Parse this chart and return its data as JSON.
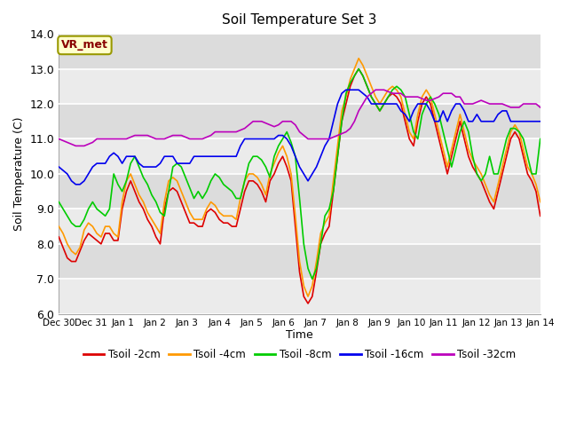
{
  "title": "Soil Temperature Set 3",
  "xlabel": "Time",
  "ylabel": "Soil Temperature (C)",
  "ylim": [
    6.0,
    14.0
  ],
  "yticks": [
    6.0,
    7.0,
    8.0,
    9.0,
    10.0,
    11.0,
    12.0,
    13.0,
    14.0
  ],
  "ytick_labels": [
    "6.0",
    "7.0",
    "8.0",
    "9.0",
    "10.0",
    "11.0",
    "12.0",
    "13.0",
    "14.0"
  ],
  "xlim": [
    0,
    15
  ],
  "xtick_labels": [
    "Dec 30",
    "Dec 31",
    "Jan 1",
    "Jan 2",
    "Jan 3",
    "Jan 4",
    "Jan 5",
    "Jan 6",
    "Jan 7",
    "Jan 8",
    "Jan 9",
    "Jan 10",
    "Jan 11",
    "Jan 12",
    "Jan 13",
    "Jan 14"
  ],
  "bg_color_light": "#ebebeb",
  "bg_color_dark": "#dcdcdc",
  "plot_bg": "#e8e8e8",
  "lines": {
    "Tsoil -2cm": {
      "color": "#dd0000",
      "lw": 1.2
    },
    "Tsoil -4cm": {
      "color": "#ff9900",
      "lw": 1.2
    },
    "Tsoil -8cm": {
      "color": "#00cc00",
      "lw": 1.2
    },
    "Tsoil -16cm": {
      "color": "#0000ee",
      "lw": 1.2
    },
    "Tsoil -32cm": {
      "color": "#bb00bb",
      "lw": 1.2
    }
  },
  "legend_box_color": "#ffffcc",
  "legend_box_edge": "#999900",
  "legend_text": "VR_met",
  "series": {
    "Tsoil -2cm": [
      8.2,
      7.9,
      7.6,
      7.5,
      7.5,
      7.8,
      8.1,
      8.3,
      8.2,
      8.1,
      8.0,
      8.3,
      8.3,
      8.1,
      8.1,
      9.0,
      9.5,
      9.8,
      9.5,
      9.2,
      9.0,
      8.7,
      8.5,
      8.2,
      8.0,
      9.0,
      9.5,
      9.6,
      9.5,
      9.2,
      8.9,
      8.6,
      8.6,
      8.5,
      8.5,
      8.9,
      9.0,
      8.9,
      8.7,
      8.6,
      8.6,
      8.5,
      8.5,
      9.0,
      9.5,
      9.8,
      9.8,
      9.7,
      9.5,
      9.2,
      9.8,
      10.0,
      10.3,
      10.5,
      10.2,
      9.8,
      8.5,
      7.2,
      6.5,
      6.3,
      6.5,
      7.2,
      8.0,
      8.3,
      8.5,
      9.5,
      10.5,
      11.5,
      12.0,
      12.5,
      12.8,
      13.0,
      12.8,
      12.5,
      12.2,
      12.0,
      11.8,
      12.0,
      12.2,
      12.3,
      12.2,
      12.0,
      11.5,
      11.0,
      10.8,
      11.5,
      12.0,
      12.2,
      12.0,
      11.5,
      11.0,
      10.5,
      10.0,
      10.5,
      11.0,
      11.5,
      11.0,
      10.5,
      10.2,
      10.0,
      9.8,
      9.5,
      9.2,
      9.0,
      9.5,
      10.0,
      10.5,
      11.0,
      11.2,
      11.0,
      10.5,
      10.0,
      9.8,
      9.5,
      8.8
    ],
    "Tsoil -4cm": [
      8.5,
      8.3,
      8.0,
      7.8,
      7.7,
      7.9,
      8.4,
      8.6,
      8.5,
      8.3,
      8.2,
      8.5,
      8.5,
      8.3,
      8.2,
      9.2,
      9.8,
      10.0,
      9.7,
      9.4,
      9.2,
      8.9,
      8.7,
      8.5,
      8.3,
      9.2,
      9.8,
      9.9,
      9.8,
      9.5,
      9.2,
      8.9,
      8.7,
      8.7,
      8.7,
      9.0,
      9.2,
      9.1,
      8.9,
      8.8,
      8.8,
      8.8,
      8.7,
      9.3,
      9.8,
      10.0,
      10.0,
      9.9,
      9.7,
      9.4,
      10.0,
      10.3,
      10.6,
      10.8,
      10.5,
      10.0,
      8.8,
      7.5,
      6.8,
      6.5,
      6.8,
      7.5,
      8.3,
      8.6,
      8.8,
      9.8,
      10.8,
      11.8,
      12.2,
      12.7,
      13.0,
      13.3,
      13.1,
      12.8,
      12.5,
      12.2,
      12.0,
      12.2,
      12.4,
      12.5,
      12.4,
      12.2,
      11.7,
      11.2,
      11.0,
      11.7,
      12.2,
      12.4,
      12.2,
      11.7,
      11.2,
      10.7,
      10.2,
      10.7,
      11.2,
      11.7,
      11.2,
      10.7,
      10.4,
      10.2,
      10.0,
      9.7,
      9.4,
      9.2,
      9.7,
      10.2,
      10.7,
      11.2,
      11.4,
      11.2,
      10.7,
      10.2,
      10.0,
      9.7,
      9.2
    ],
    "Tsoil -8cm": [
      9.2,
      9.0,
      8.8,
      8.6,
      8.5,
      8.5,
      8.7,
      9.0,
      9.2,
      9.0,
      8.9,
      8.8,
      9.0,
      10.0,
      9.7,
      9.5,
      9.8,
      10.3,
      10.5,
      10.2,
      9.9,
      9.7,
      9.4,
      9.2,
      8.9,
      8.8,
      9.5,
      10.2,
      10.3,
      10.2,
      9.9,
      9.6,
      9.3,
      9.5,
      9.3,
      9.5,
      9.8,
      10.0,
      9.9,
      9.7,
      9.6,
      9.5,
      9.3,
      9.3,
      9.8,
      10.3,
      10.5,
      10.5,
      10.4,
      10.2,
      9.9,
      10.5,
      10.8,
      11.0,
      11.2,
      10.9,
      10.5,
      9.3,
      8.0,
      7.3,
      7.0,
      7.3,
      8.0,
      8.8,
      9.0,
      9.5,
      10.5,
      11.5,
      12.3,
      12.6,
      12.8,
      13.0,
      12.8,
      12.5,
      12.2,
      12.0,
      11.8,
      12.0,
      12.2,
      12.4,
      12.5,
      12.4,
      12.2,
      11.7,
      11.2,
      11.0,
      11.7,
      12.0,
      12.2,
      12.0,
      11.7,
      11.2,
      10.7,
      10.2,
      10.7,
      11.2,
      11.5,
      11.2,
      10.5,
      10.0,
      9.8,
      10.0,
      10.5,
      10.0,
      10.0,
      10.5,
      11.0,
      11.3,
      11.3,
      11.2,
      11.0,
      10.5,
      10.0,
      10.0,
      11.0
    ],
    "Tsoil -16cm": [
      10.2,
      10.1,
      10.0,
      9.8,
      9.7,
      9.7,
      9.8,
      10.0,
      10.2,
      10.3,
      10.3,
      10.3,
      10.5,
      10.6,
      10.5,
      10.3,
      10.5,
      10.5,
      10.5,
      10.3,
      10.2,
      10.2,
      10.2,
      10.2,
      10.3,
      10.5,
      10.5,
      10.5,
      10.3,
      10.3,
      10.3,
      10.3,
      10.5,
      10.5,
      10.5,
      10.5,
      10.5,
      10.5,
      10.5,
      10.5,
      10.5,
      10.5,
      10.5,
      10.8,
      11.0,
      11.0,
      11.0,
      11.0,
      11.0,
      11.0,
      11.0,
      11.0,
      11.1,
      11.1,
      11.0,
      10.8,
      10.5,
      10.2,
      10.0,
      9.8,
      10.0,
      10.2,
      10.5,
      10.8,
      11.0,
      11.5,
      12.0,
      12.3,
      12.4,
      12.4,
      12.4,
      12.4,
      12.3,
      12.2,
      12.0,
      12.0,
      12.0,
      12.0,
      12.0,
      12.0,
      12.0,
      11.8,
      11.7,
      11.5,
      11.8,
      12.0,
      12.0,
      12.0,
      11.8,
      11.5,
      11.5,
      11.8,
      11.5,
      11.8,
      12.0,
      12.0,
      11.8,
      11.5,
      11.5,
      11.7,
      11.5,
      11.5,
      11.5,
      11.5,
      11.7,
      11.8,
      11.8,
      11.5,
      11.5,
      11.5,
      11.5,
      11.5,
      11.5,
      11.5,
      11.5
    ],
    "Tsoil -32cm": [
      11.0,
      10.95,
      10.9,
      10.85,
      10.8,
      10.8,
      10.8,
      10.85,
      10.9,
      11.0,
      11.0,
      11.0,
      11.0,
      11.0,
      11.0,
      11.0,
      11.0,
      11.05,
      11.1,
      11.1,
      11.1,
      11.1,
      11.05,
      11.0,
      11.0,
      11.0,
      11.05,
      11.1,
      11.1,
      11.1,
      11.05,
      11.0,
      11.0,
      11.0,
      11.0,
      11.05,
      11.1,
      11.2,
      11.2,
      11.2,
      11.2,
      11.2,
      11.2,
      11.25,
      11.3,
      11.4,
      11.5,
      11.5,
      11.5,
      11.45,
      11.4,
      11.35,
      11.4,
      11.5,
      11.5,
      11.5,
      11.4,
      11.2,
      11.1,
      11.0,
      11.0,
      11.0,
      11.0,
      11.0,
      11.0,
      11.05,
      11.1,
      11.15,
      11.2,
      11.3,
      11.5,
      11.8,
      12.0,
      12.2,
      12.3,
      12.4,
      12.4,
      12.4,
      12.35,
      12.3,
      12.3,
      12.3,
      12.2,
      12.2,
      12.2,
      12.2,
      12.15,
      12.1,
      12.1,
      12.15,
      12.2,
      12.3,
      12.3,
      12.3,
      12.2,
      12.2,
      12.0,
      12.0,
      12.0,
      12.05,
      12.1,
      12.05,
      12.0,
      12.0,
      12.0,
      12.0,
      11.95,
      11.9,
      11.9,
      11.9,
      12.0,
      12.0,
      12.0,
      12.0,
      11.9
    ]
  }
}
